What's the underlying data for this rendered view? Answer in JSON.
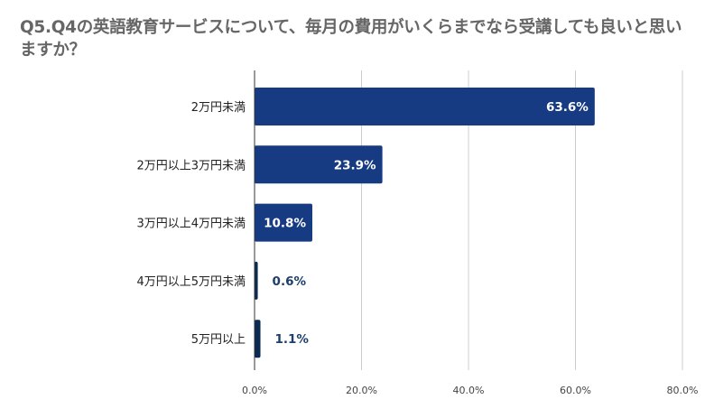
{
  "chart_data": {
    "type": "bar",
    "orientation": "horizontal",
    "title": "Q5.Q4の英語教育サービスについて、毎月の費用がいくらまでなら受講しても良いと思いますか？",
    "categories": [
      "2万円未満",
      "2万円以上3万円未満",
      "3万円以上4万円未満",
      "4万円以上5万円未満",
      "5万円以上"
    ],
    "values": [
      63.6,
      23.9,
      10.8,
      0.6,
      1.1
    ],
    "value_labels": [
      "63.6%",
      "23.9%",
      "10.8%",
      "0.6%",
      "1.1%"
    ],
    "x_ticks": [
      "0.0%",
      "20.0%",
      "40.0%",
      "60.0%",
      "80.0%"
    ],
    "xlim": [
      0,
      80
    ],
    "xlabel": "",
    "ylabel": "",
    "grid": "vertical",
    "legend": "none",
    "colors": {
      "bar": "#173b82",
      "bar_small": "#0b2a52",
      "label_inside": "#ffffff",
      "label_outside": "#1c3f6b",
      "title": "#666666",
      "category_text": "#222222",
      "tick_text": "#444444",
      "grid": "#cccccc",
      "axis": "#333333"
    }
  }
}
